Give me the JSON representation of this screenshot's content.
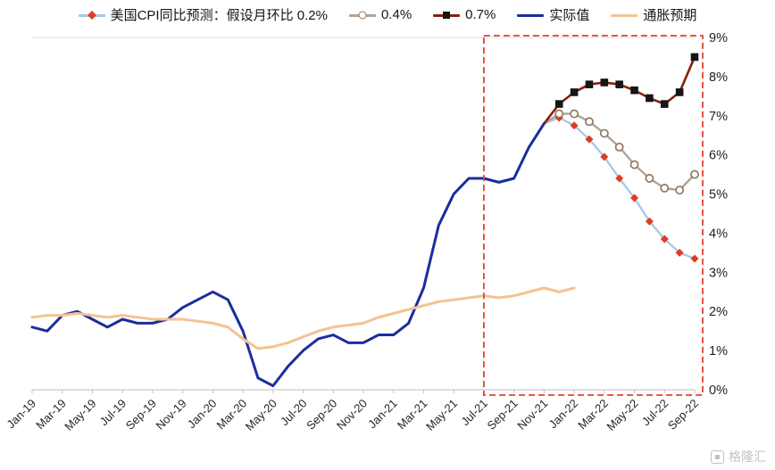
{
  "watermark": {
    "text": "格隆汇"
  },
  "chart_data": {
    "type": "line",
    "ylim": [
      0,
      9
    ],
    "y_tick_labels": [
      "0%",
      "1%",
      "2%",
      "3%",
      "4%",
      "5%",
      "6%",
      "7%",
      "8%",
      "9%"
    ],
    "x_tick_labels": [
      "Jan-19",
      "Mar-19",
      "May-19",
      "Jul-19",
      "Sep-19",
      "Nov-19",
      "Jan-20",
      "Mar-20",
      "May-20",
      "Jul-20",
      "Sep-20",
      "Nov-20",
      "Jan-21",
      "Mar-21",
      "May-21",
      "Jul-21",
      "Sep-21",
      "Nov-21",
      "Jan-22",
      "Mar-22",
      "May-22",
      "Jul-22",
      "Sep-22"
    ],
    "legend_position": "top",
    "grid": "minimal",
    "highlight_box": {
      "from_index": 30,
      "from_label": "Jul-21",
      "to_label": "Sep-22",
      "color": "#e8402e"
    },
    "series": [
      {
        "name": "美国CPI同比预测：假设月环比 0.2%",
        "color": "#a6c9e6",
        "width": 2.4,
        "marker": "diamond",
        "marker_color": "#e23a23",
        "start_index": 34,
        "values": [
          6.8,
          6.95,
          6.75,
          6.4,
          5.95,
          5.4,
          4.9,
          4.3,
          3.85,
          3.5,
          3.35
        ]
      },
      {
        "name": "0.4%",
        "color": "#b6a191",
        "width": 2.4,
        "marker": "circle",
        "marker_color": "#8f7866",
        "start_index": 34,
        "values": [
          6.8,
          7.05,
          7.05,
          6.85,
          6.55,
          6.2,
          5.75,
          5.4,
          5.15,
          5.1,
          5.5
        ]
      },
      {
        "name": "0.7%",
        "color": "#8a1f12",
        "width": 2.6,
        "marker": "square",
        "marker_color": "#151515",
        "start_index": 34,
        "values": [
          6.8,
          7.3,
          7.6,
          7.8,
          7.85,
          7.8,
          7.65,
          7.45,
          7.3,
          7.6,
          8.5
        ]
      },
      {
        "name": "实际值",
        "color": "#1b2d9e",
        "width": 3,
        "marker": null,
        "start_index": 0,
        "values": [
          1.6,
          1.5,
          1.9,
          2.0,
          1.8,
          1.6,
          1.8,
          1.7,
          1.7,
          1.8,
          2.1,
          2.3,
          2.5,
          2.3,
          1.5,
          0.3,
          0.1,
          0.6,
          1.0,
          1.3,
          1.4,
          1.2,
          1.2,
          1.4,
          1.4,
          1.7,
          2.6,
          4.2,
          5.0,
          5.4,
          5.4,
          5.3,
          5.4,
          6.2,
          6.8
        ]
      },
      {
        "name": "通胀预期",
        "color": "#f6c291",
        "width": 3,
        "marker": null,
        "start_index": 0,
        "values": [
          1.85,
          1.9,
          1.9,
          1.95,
          1.9,
          1.85,
          1.9,
          1.85,
          1.8,
          1.8,
          1.8,
          1.75,
          1.7,
          1.6,
          1.3,
          1.05,
          1.1,
          1.2,
          1.35,
          1.5,
          1.6,
          1.65,
          1.7,
          1.85,
          1.95,
          2.05,
          2.15,
          2.25,
          2.3,
          2.35,
          2.4,
          2.35,
          2.4,
          2.5,
          2.6,
          2.5,
          2.6
        ]
      }
    ]
  }
}
